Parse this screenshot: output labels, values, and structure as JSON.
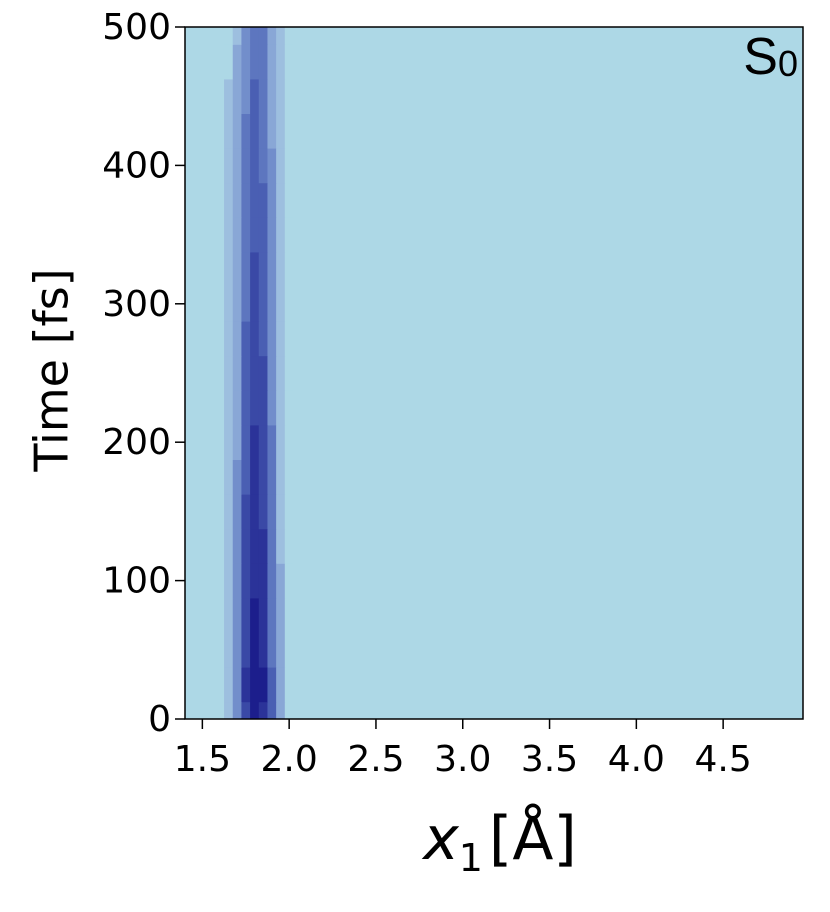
{
  "chart_data": {
    "type": "heatmap",
    "ylabel": "Time [fs]",
    "xlabel_symbol": "x",
    "xlabel_subscript": "1",
    "xlabel_unit": "[Å]",
    "annotation": "S",
    "annotation_subscript": "0",
    "xlim": [
      1.4,
      4.96
    ],
    "ylim": [
      0,
      500
    ],
    "xticks": [
      1.5,
      {
        "value": 2.0,
        "label": "2.0"
      },
      2.5,
      {
        "value": 3.0,
        "label": "3.0"
      },
      3.5,
      {
        "value": 4.0,
        "label": "4.0"
      },
      4.5
    ],
    "yticks": [
      0,
      100,
      200,
      300,
      400,
      500
    ],
    "x": [
      1.65,
      1.7,
      1.75,
      1.8,
      1.85,
      1.9,
      1.95,
      2.0
    ],
    "y": [
      0,
      25,
      50,
      75,
      100,
      125,
      150,
      175,
      200,
      225,
      250,
      275,
      300,
      325,
      350,
      375,
      400,
      425,
      450,
      475,
      500
    ],
    "z": [
      [
        0.1,
        0.32,
        0.69,
        0.94,
        0.83,
        0.47,
        0.17,
        0.04
      ],
      [
        0.1,
        0.34,
        0.73,
        0.99,
        0.87,
        0.49,
        0.18,
        0.04
      ],
      [
        0.09,
        0.31,
        0.66,
        0.89,
        0.78,
        0.44,
        0.16,
        0.04
      ],
      [
        0.09,
        0.3,
        0.64,
        0.87,
        0.77,
        0.43,
        0.16,
        0.04
      ],
      [
        0.09,
        0.29,
        0.62,
        0.84,
        0.74,
        0.42,
        0.15,
        0.03
      ],
      [
        0.08,
        0.27,
        0.58,
        0.79,
        0.7,
        0.39,
        0.14,
        0.03
      ],
      [
        0.08,
        0.27,
        0.57,
        0.77,
        0.68,
        0.38,
        0.14,
        0.03
      ],
      [
        0.07,
        0.25,
        0.54,
        0.73,
        0.64,
        0.36,
        0.13,
        0.03
      ],
      [
        0.07,
        0.24,
        0.53,
        0.71,
        0.63,
        0.35,
        0.13,
        0.03
      ],
      [
        0.07,
        0.23,
        0.5,
        0.67,
        0.59,
        0.33,
        0.12,
        0.03
      ],
      [
        0.07,
        0.22,
        0.48,
        0.65,
        0.57,
        0.32,
        0.12,
        0.03
      ],
      [
        0.06,
        0.21,
        0.45,
        0.61,
        0.54,
        0.3,
        0.11,
        0.02
      ],
      [
        0.06,
        0.2,
        0.44,
        0.59,
        0.52,
        0.29,
        0.11,
        0.02
      ],
      [
        0.06,
        0.19,
        0.42,
        0.56,
        0.5,
        0.28,
        0.1,
        0.02
      ],
      [
        0.06,
        0.19,
        0.4,
        0.54,
        0.48,
        0.27,
        0.1,
        0.02
      ],
      [
        0.05,
        0.18,
        0.38,
        0.51,
        0.45,
        0.25,
        0.09,
        0.02
      ],
      [
        0.05,
        0.17,
        0.37,
        0.5,
        0.44,
        0.25,
        0.09,
        0.02
      ],
      [
        0.05,
        0.16,
        0.35,
        0.48,
        0.42,
        0.24,
        0.09,
        0.02
      ],
      [
        0.05,
        0.16,
        0.34,
        0.46,
        0.4,
        0.23,
        0.08,
        0.02
      ],
      [
        0.04,
        0.15,
        0.32,
        0.44,
        0.38,
        0.22,
        0.08,
        0.02
      ],
      [
        0.04,
        0.14,
        0.31,
        0.42,
        0.37,
        0.21,
        0.08,
        0.02
      ]
    ],
    "levels": [
      0,
      0.05,
      0.15,
      0.25,
      0.35,
      0.45,
      0.55,
      0.7,
      0.85,
      1.01
    ],
    "colors": [
      "#add8e6",
      "#9dbfdf",
      "#89a7d6",
      "#728ecb",
      "#5d76bf",
      "#4a5fb3",
      "#3a49a6",
      "#2b3399",
      "#1c1e8c"
    ]
  }
}
